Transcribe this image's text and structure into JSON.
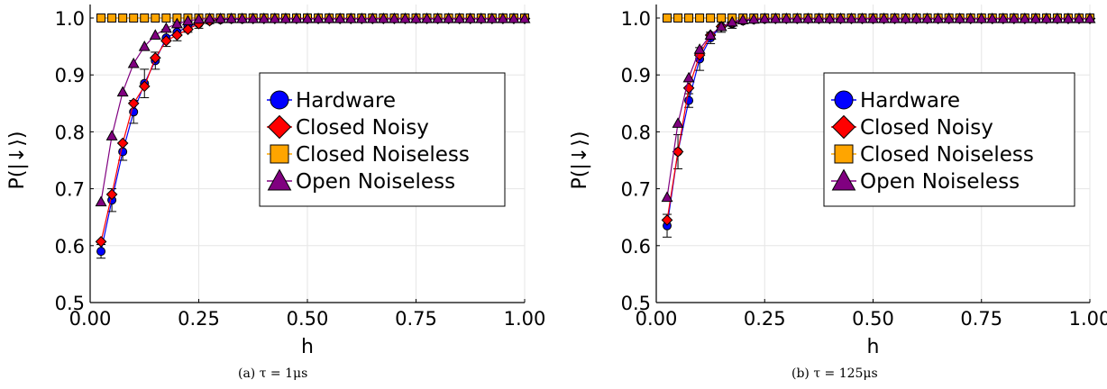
{
  "chart_data": [
    {
      "type": "scatter",
      "title": "",
      "caption": "(a) τ = 1μs",
      "xlabel": "h",
      "ylabel": "P(|↓⟩)",
      "xlim": [
        0.0,
        1.0
      ],
      "ylim": [
        0.5,
        1.0
      ],
      "xticks": [
        "0.00",
        "0.25",
        "0.50",
        "0.75",
        "1.00"
      ],
      "yticks": [
        "0.5",
        "0.6",
        "0.7",
        "0.8",
        "0.9",
        "1.0"
      ],
      "grid": true,
      "legend_position": "right",
      "x": [
        0.025,
        0.05,
        0.075,
        0.1,
        0.125,
        0.15,
        0.175,
        0.2,
        0.225,
        0.25,
        0.275,
        0.3,
        0.325,
        0.35,
        0.375,
        0.4,
        0.425,
        0.45,
        0.475,
        0.5,
        0.525,
        0.55,
        0.575,
        0.6,
        0.625,
        0.65,
        0.675,
        0.7,
        0.725,
        0.75,
        0.775,
        0.8,
        0.825,
        0.85,
        0.875,
        0.9,
        0.925,
        0.95,
        0.975,
        1.0
      ],
      "series": [
        {
          "name": "Hardware",
          "color": "#0000ff",
          "marker": "circle",
          "values": [
            0.59,
            0.68,
            0.765,
            0.835,
            0.885,
            0.925,
            0.965,
            0.975,
            0.985,
            0.99,
            0.995,
            0.997,
            0.998,
            0.998,
            0.999,
            0.999,
            0.999,
            0.999,
            0.999,
            0.999,
            0.999,
            0.999,
            0.999,
            0.999,
            0.999,
            0.999,
            0.999,
            0.999,
            0.999,
            0.999,
            0.999,
            0.999,
            0.999,
            0.999,
            0.999,
            0.999,
            0.999,
            0.999,
            0.999,
            0.999
          ],
          "errors": [
            0.012,
            0.02,
            0.015,
            0.02,
            0.025,
            0.015,
            0.015,
            0.015,
            0.01,
            0.008,
            0.005,
            0.004,
            0.003,
            0.003,
            0.002,
            0.002,
            0.002,
            0.002,
            0.002,
            0.002,
            0.002,
            0.002,
            0.002,
            0.002,
            0.002,
            0.002,
            0.002,
            0.002,
            0.002,
            0.002,
            0.002,
            0.002,
            0.002,
            0.002,
            0.002,
            0.002,
            0.002,
            0.002,
            0.002,
            0.002
          ]
        },
        {
          "name": "Closed Noisy",
          "color": "#ff0000",
          "marker": "diamond",
          "values": [
            0.607,
            0.69,
            0.78,
            0.85,
            0.88,
            0.93,
            0.96,
            0.97,
            0.98,
            0.99,
            0.995,
            0.998,
            0.999,
            0.999,
            0.999,
            0.999,
            0.999,
            0.999,
            0.999,
            0.999,
            0.999,
            0.999,
            0.999,
            0.999,
            0.999,
            0.999,
            0.999,
            0.999,
            0.999,
            0.999,
            0.999,
            0.999,
            0.999,
            0.999,
            0.999,
            0.999,
            0.999,
            0.999,
            0.999,
            0.999
          ]
        },
        {
          "name": "Closed Noiseless",
          "color": "#ffa500",
          "marker": "square",
          "values": [
            1.0,
            1.0,
            1.0,
            1.0,
            1.0,
            1.0,
            1.0,
            1.0,
            1.0,
            1.0,
            1.0,
            1.0,
            1.0,
            1.0,
            1.0,
            1.0,
            1.0,
            1.0,
            1.0,
            1.0,
            1.0,
            1.0,
            1.0,
            1.0,
            1.0,
            1.0,
            1.0,
            1.0,
            1.0,
            1.0,
            1.0,
            1.0,
            1.0,
            1.0,
            1.0,
            1.0,
            1.0,
            1.0,
            1.0,
            1.0
          ]
        },
        {
          "name": "Open Noiseless",
          "color": "#800080",
          "marker": "triangle",
          "values": [
            0.677,
            0.793,
            0.87,
            0.92,
            0.95,
            0.97,
            0.982,
            0.99,
            0.995,
            0.998,
            0.999,
            0.999,
            0.999,
            0.999,
            0.999,
            0.999,
            0.999,
            0.999,
            0.999,
            0.999,
            0.999,
            0.999,
            0.999,
            0.999,
            0.999,
            0.999,
            0.999,
            0.999,
            0.999,
            0.999,
            0.999,
            0.999,
            0.999,
            0.999,
            0.999,
            0.999,
            0.999,
            0.999,
            0.999,
            0.999
          ]
        }
      ]
    },
    {
      "type": "scatter",
      "title": "",
      "caption": "(b) τ = 125μs",
      "xlabel": "h",
      "ylabel": "P(|↓⟩)",
      "xlim": [
        0.0,
        1.0
      ],
      "ylim": [
        0.5,
        1.0
      ],
      "xticks": [
        "0.00",
        "0.25",
        "0.50",
        "0.75",
        "1.00"
      ],
      "yticks": [
        "0.5",
        "0.6",
        "0.7",
        "0.8",
        "0.9",
        "1.0"
      ],
      "grid": true,
      "legend_position": "right",
      "x": [
        0.025,
        0.05,
        0.075,
        0.1,
        0.125,
        0.15,
        0.175,
        0.2,
        0.225,
        0.25,
        0.275,
        0.3,
        0.325,
        0.35,
        0.375,
        0.4,
        0.425,
        0.45,
        0.475,
        0.5,
        0.525,
        0.55,
        0.575,
        0.6,
        0.625,
        0.65,
        0.675,
        0.7,
        0.725,
        0.75,
        0.775,
        0.8,
        0.825,
        0.85,
        0.875,
        0.9,
        0.925,
        0.95,
        0.975,
        1.0
      ],
      "series": [
        {
          "name": "Hardware",
          "color": "#0000ff",
          "marker": "circle",
          "values": [
            0.635,
            0.765,
            0.855,
            0.928,
            0.965,
            0.985,
            0.99,
            0.995,
            0.997,
            0.998,
            0.999,
            0.999,
            0.999,
            0.999,
            0.999,
            0.999,
            0.999,
            0.999,
            0.999,
            0.999,
            0.999,
            0.999,
            0.999,
            0.999,
            0.999,
            0.999,
            0.999,
            0.999,
            0.999,
            0.999,
            0.999,
            0.999,
            0.999,
            0.999,
            0.999,
            0.999,
            0.999,
            0.999,
            0.999,
            0.999
          ],
          "errors": [
            0.02,
            0.03,
            0.012,
            0.02,
            0.01,
            0.01,
            0.008,
            0.005,
            0.004,
            0.003,
            0.002,
            0.002,
            0.002,
            0.002,
            0.002,
            0.002,
            0.002,
            0.002,
            0.002,
            0.002,
            0.002,
            0.002,
            0.002,
            0.002,
            0.002,
            0.002,
            0.002,
            0.002,
            0.002,
            0.002,
            0.002,
            0.002,
            0.002,
            0.002,
            0.002,
            0.002,
            0.002,
            0.002,
            0.002,
            0.002
          ]
        },
        {
          "name": "Closed Noisy",
          "color": "#ff0000",
          "marker": "diamond",
          "values": [
            0.645,
            0.765,
            0.877,
            0.935,
            0.97,
            0.985,
            0.992,
            0.996,
            0.998,
            0.999,
            0.999,
            0.999,
            0.999,
            0.999,
            0.999,
            0.999,
            0.999,
            0.999,
            0.999,
            0.999,
            0.999,
            0.999,
            0.999,
            0.999,
            0.999,
            0.999,
            0.999,
            0.999,
            0.999,
            0.999,
            0.999,
            0.999,
            0.999,
            0.999,
            0.999,
            0.999,
            0.999,
            0.999,
            0.999,
            0.999
          ]
        },
        {
          "name": "Closed Noiseless",
          "color": "#ffa500",
          "marker": "square",
          "values": [
            1.0,
            1.0,
            1.0,
            1.0,
            1.0,
            1.0,
            1.0,
            1.0,
            1.0,
            1.0,
            1.0,
            1.0,
            1.0,
            1.0,
            1.0,
            1.0,
            1.0,
            1.0,
            1.0,
            1.0,
            1.0,
            1.0,
            1.0,
            1.0,
            1.0,
            1.0,
            1.0,
            1.0,
            1.0,
            1.0,
            1.0,
            1.0,
            1.0,
            1.0,
            1.0,
            1.0,
            1.0,
            1.0,
            1.0,
            1.0
          ]
        },
        {
          "name": "Open Noiseless",
          "color": "#800080",
          "marker": "triangle",
          "values": [
            0.685,
            0.815,
            0.895,
            0.945,
            0.97,
            0.985,
            0.993,
            0.997,
            0.998,
            0.999,
            0.999,
            0.999,
            0.999,
            0.999,
            0.999,
            0.999,
            0.999,
            0.999,
            0.999,
            0.999,
            0.999,
            0.999,
            0.999,
            0.999,
            0.999,
            0.999,
            0.999,
            0.999,
            0.999,
            0.999,
            0.999,
            0.999,
            0.999,
            0.999,
            0.999,
            0.999,
            0.999,
            0.999,
            0.999,
            0.999
          ]
        }
      ]
    }
  ]
}
